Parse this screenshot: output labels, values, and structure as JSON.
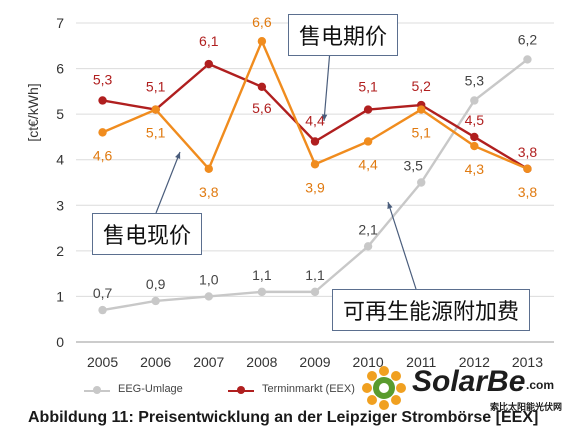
{
  "chart_data": {
    "type": "line",
    "ylabel": "[ct€/kWh]",
    "ylim": [
      0,
      7
    ],
    "yticks": [
      0,
      1,
      2,
      3,
      4,
      5,
      6,
      7
    ],
    "categories": [
      "2005",
      "2006",
      "2007",
      "2008",
      "2009",
      "2010",
      "2011",
      "2012",
      "2013"
    ],
    "grid": true,
    "series": [
      {
        "name": "EEG-Umlage",
        "color": "#c8c8c8",
        "values": [
          0.7,
          0.9,
          1.0,
          1.1,
          1.1,
          2.1,
          3.5,
          5.3,
          6.2
        ],
        "labels": [
          "0,7",
          "0,9",
          "1,0",
          "1,1",
          "1,1",
          "2,1",
          "3,5",
          "5,3",
          "6,2"
        ]
      },
      {
        "name": "Terminmarkt (EEX)",
        "color": "#b01f1f",
        "values": [
          5.3,
          5.1,
          6.1,
          5.6,
          4.4,
          5.1,
          5.2,
          4.5,
          3.8
        ],
        "labels": [
          "5,3",
          "5,1",
          "6,1",
          "5,6",
          "4,4",
          "5,1",
          "5,2",
          "4,5",
          "3,8"
        ]
      },
      {
        "name": "",
        "color": "#f08c1e",
        "values": [
          4.6,
          5.1,
          3.8,
          6.6,
          3.9,
          4.4,
          5.1,
          4.3,
          3.8
        ],
        "labels": [
          "4,6",
          "5,1",
          "3,8",
          "6,6",
          "3,9",
          "4,4",
          "5,1",
          "4,3",
          "3,8"
        ]
      }
    ]
  },
  "annotations": {
    "spot": "售电现价",
    "term": "售电期价",
    "eeg": "可再生能源附加费"
  },
  "caption": "Abbildung 11: Preisentwicklung an der Leipziger Strombörse [EEX]",
  "watermark": {
    "name": "SolarBe",
    "suffix": ".com",
    "subtitle": "索比太阳能光伏网"
  }
}
